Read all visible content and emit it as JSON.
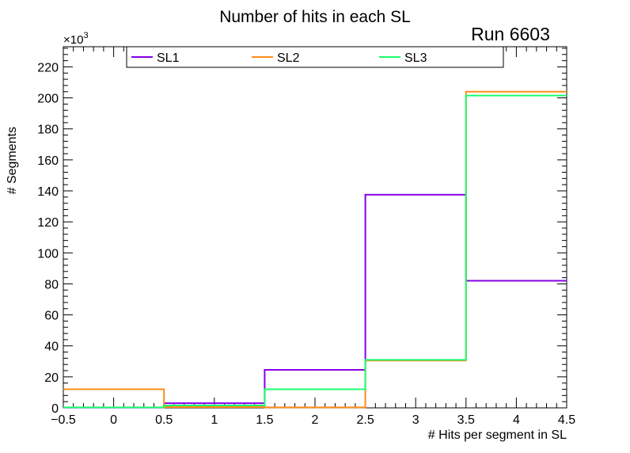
{
  "chart_data": {
    "type": "step-histogram",
    "title": "Number of hits in each SL",
    "annotation": "Run 6603",
    "xlabel": "# Hits per segment in SL",
    "ylabel": "# Segments",
    "y_multiplier_label": "×10",
    "y_multiplier_exp": "3",
    "xlim": [
      -0.5,
      4.5
    ],
    "ylim": [
      0,
      233
    ],
    "x_ticks": [
      -0.5,
      0,
      0.5,
      1,
      1.5,
      2,
      2.5,
      3,
      3.5,
      4,
      4.5
    ],
    "x_tick_labels": [
      "−0.5",
      "0",
      "0.5",
      "1",
      "1.5",
      "2",
      "2.5",
      "3",
      "3.5",
      "4",
      "4.5"
    ],
    "y_ticks": [
      0,
      20,
      40,
      60,
      80,
      100,
      120,
      140,
      160,
      180,
      200,
      220
    ],
    "y_tick_labels": [
      "0",
      "20",
      "40",
      "60",
      "80",
      "100",
      "120",
      "140",
      "160",
      "180",
      "200",
      "220"
    ],
    "bin_edges": [
      -0.5,
      0.5,
      1.5,
      2.5,
      3.5,
      4.5
    ],
    "legend_position": "top",
    "series": [
      {
        "name": "SL1",
        "color": "#8800e6",
        "values": [
          0.2,
          3.0,
          24.5,
          137.5,
          82.0
        ]
      },
      {
        "name": "SL2",
        "color": "#ff8c1a",
        "values": [
          12.0,
          0.5,
          0.3,
          30.5,
          204.0
        ]
      },
      {
        "name": "SL3",
        "color": "#1aff6e",
        "values": [
          0.3,
          1.5,
          12.0,
          31.0,
          201.5
        ]
      }
    ]
  }
}
